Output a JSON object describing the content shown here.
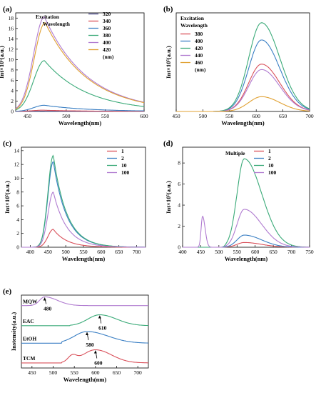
{
  "chart_data": [
    {
      "panel_label": "(a)",
      "type": "line",
      "xlabel": "Wavelength(nm)",
      "ylabel": "Int×10⁵(a.u.)",
      "xlim": [
        435,
        600
      ],
      "ylim": [
        0,
        19
      ],
      "xticks": [
        450,
        500,
        550,
        600
      ],
      "yticks": [
        0,
        2,
        4,
        6,
        8,
        10,
        12,
        14,
        16,
        18
      ],
      "legend_title": [
        "Excitation",
        "Wavelength"
      ],
      "legend_unit": "(nm)",
      "legend_position": "top-right",
      "series": [
        {
          "name": "320",
          "color": "#4a4a8c",
          "peak_x": 470,
          "peak_y": 0.05
        },
        {
          "name": "340",
          "color": "#d9505a",
          "peak_x": 470,
          "peak_y": 0.25
        },
        {
          "name": "360",
          "color": "#3a7fc4",
          "peak_x": 472,
          "peak_y": 1.2
        },
        {
          "name": "380",
          "color": "#3aaa78",
          "peak_x": 472,
          "peak_y": 9.8
        },
        {
          "name": "400",
          "color": "#b07bd0",
          "peak_x": 472,
          "peak_y": 18.2
        },
        {
          "name": "420",
          "color": "#e0a030",
          "peak_x": 473,
          "peak_y": 17.1
        }
      ]
    },
    {
      "panel_label": "(b)",
      "type": "line",
      "xlabel": "Wavelength(nm)",
      "ylabel": "Int×10⁵(a.u.)",
      "xlim": [
        450,
        700
      ],
      "ylim": [
        0,
        20
      ],
      "xticks": [
        450,
        500,
        550,
        600,
        650,
        700
      ],
      "yticks": [],
      "legend_title": [
        "Excitation",
        "Wavelength"
      ],
      "legend_unit": "(nm)",
      "legend_position": "top-left",
      "series": [
        {
          "name": "380",
          "color": "#d9505a",
          "peak_x": 610,
          "peak_y": 9.6
        },
        {
          "name": "400",
          "color": "#3a7fc4",
          "peak_x": 610,
          "peak_y": 14.5
        },
        {
          "name": "420",
          "color": "#3aaa78",
          "peak_x": 610,
          "peak_y": 18.0
        },
        {
          "name": "440",
          "color": "#b07bd0",
          "peak_x": 610,
          "peak_y": 8.5
        },
        {
          "name": "460",
          "color": "#e0a030",
          "peak_x": 610,
          "peak_y": 3.0
        }
      ]
    },
    {
      "panel_label": "(c)",
      "type": "line",
      "xlabel": "Wavelength(nm)",
      "ylabel": "Int×10⁵(a.u.)",
      "xlim": [
        375,
        725
      ],
      "ylim": [
        0,
        14.5
      ],
      "xticks": [
        400,
        450,
        500,
        550,
        600,
        650,
        700
      ],
      "yticks": [
        0,
        2,
        4,
        6,
        8,
        10,
        12,
        14
      ],
      "legend_position": "top-right",
      "series": [
        {
          "name": "1",
          "color": "#d9505a",
          "peak_x": 465,
          "peak_y": 2.6
        },
        {
          "name": "2",
          "color": "#3a7fc4",
          "peak_x": 465,
          "peak_y": 12.4
        },
        {
          "name": "10",
          "color": "#3aaa78",
          "peak_x": 465,
          "peak_y": 13.3
        },
        {
          "name": "100",
          "color": "#b07bd0",
          "peak_x": 465,
          "peak_y": 8.0
        }
      ]
    },
    {
      "panel_label": "(d)",
      "type": "line",
      "xlabel": "Wavelength(nm)",
      "ylabel": "Int×10⁵(a.u.)",
      "xlim": [
        400,
        750
      ],
      "ylim": [
        0,
        9.5
      ],
      "xticks": [
        400,
        450,
        500,
        550,
        600,
        650,
        700,
        750
      ],
      "yticks": [
        0,
        2,
        4,
        6,
        8
      ],
      "legend_title": [
        "Multiple"
      ],
      "legend_position": "top-right",
      "series": [
        {
          "name": "1",
          "color": "#d9505a",
          "peak_x": 570,
          "peak_y": 0.45
        },
        {
          "name": "2",
          "color": "#3a7fc4",
          "peak_x": 570,
          "peak_y": 1.15
        },
        {
          "name": "10",
          "color": "#3aaa78",
          "peak_x": 570,
          "peak_y": 8.4
        },
        {
          "name": "100",
          "color": "#b07bd0",
          "peak_x": 570,
          "peak_y": 3.6,
          "second_peak_x": 455,
          "second_peak_y": 2.95
        }
      ]
    },
    {
      "panel_label": "(e)",
      "type": "line",
      "xlabel": "Wavelength(nm)",
      "ylabel": "Instensity(a.u.)",
      "xlim": [
        425,
        725
      ],
      "xticks": [
        450,
        500,
        550,
        600,
        650,
        700
      ],
      "series": [
        {
          "name": "MQW",
          "color": "#b07bd0",
          "peak_x": 480,
          "annotation": "480"
        },
        {
          "name": "EAC",
          "color": "#3aaa78",
          "peak_x": 610,
          "annotation": "610"
        },
        {
          "name": "EtOH",
          "color": "#3a7fc4",
          "peak_x": 580,
          "annotation": "580"
        },
        {
          "name": "TCM",
          "color": "#d9505a",
          "peak_x": 600,
          "annotation": "600"
        }
      ]
    }
  ]
}
